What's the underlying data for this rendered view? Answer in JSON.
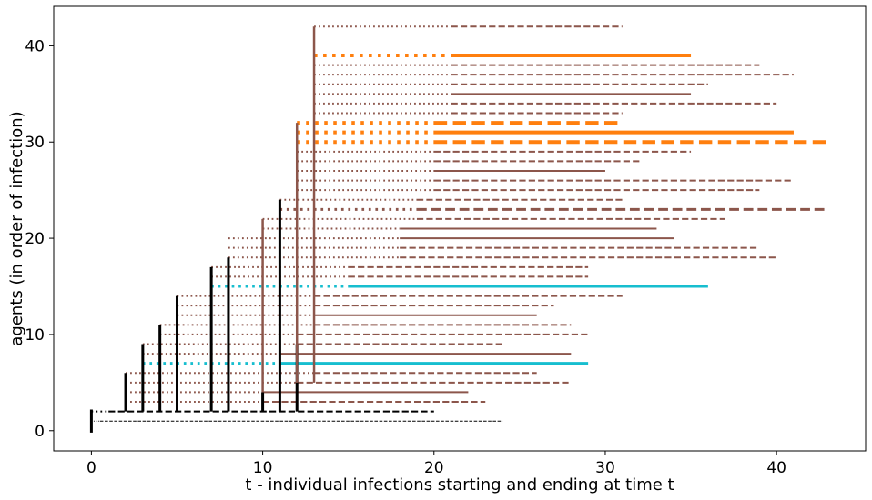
{
  "chart_data": {
    "type": "line",
    "title": "",
    "xlabel": "t - individual infections starting and ending at time t",
    "ylabel": "agents (in order of infection)",
    "xlim": [
      -2.2,
      45.2
    ],
    "ylim": [
      -2.1,
      44.1
    ],
    "xticks": [
      0,
      10,
      20,
      30,
      40
    ],
    "yticks": [
      0,
      10,
      20,
      30,
      40
    ],
    "grid": false,
    "legend": "none",
    "colors": {
      "brown": "#8c564b",
      "orange": "#ff7f0e",
      "cyan": "#17becf",
      "black": "#000000"
    },
    "infection_links": [
      {
        "t": 0,
        "y_from": -0.2,
        "y_to": 2.2,
        "color": "black"
      },
      {
        "t": 2,
        "y_from": 2,
        "y_to": 6,
        "color": "black"
      },
      {
        "t": 3,
        "y_from": 2,
        "y_to": 9,
        "color": "black"
      },
      {
        "t": 4,
        "y_from": 2,
        "y_to": 11,
        "color": "black"
      },
      {
        "t": 5,
        "y_from": 2,
        "y_to": 14,
        "color": "black"
      },
      {
        "t": 7,
        "y_from": 2,
        "y_to": 17,
        "color": "black"
      },
      {
        "t": 8,
        "y_from": 2,
        "y_to": 18,
        "color": "black"
      },
      {
        "t": 10,
        "y_from": 2,
        "y_to": 4,
        "color": "black"
      },
      {
        "t": 11,
        "y_from": 2,
        "y_to": 24,
        "color": "black"
      },
      {
        "t": 12,
        "y_from": 2,
        "y_to": 9,
        "color": "black"
      },
      {
        "t": 10,
        "y_from": 4,
        "y_to": 22,
        "color": "brown"
      },
      {
        "t": 12,
        "y_from": 5,
        "y_to": 32,
        "color": "brown"
      },
      {
        "t": 13,
        "y_from": 5,
        "y_to": 42,
        "color": "brown"
      }
    ],
    "agents": [
      {
        "agent": 1,
        "dotted": [
          0,
          0.5
        ],
        "dashed": [
          0.5,
          24
        ],
        "solid": null,
        "color": "black",
        "width": 1
      },
      {
        "agent": 2,
        "dotted": [
          0,
          1
        ],
        "dashed": [
          1,
          20
        ],
        "solid": null,
        "color": "black",
        "width": 2
      },
      {
        "agent": 3,
        "dotted": [
          2,
          10
        ],
        "dashed": [
          10,
          23
        ],
        "solid": null,
        "color": "brown",
        "width": 2
      },
      {
        "agent": 4,
        "dotted": [
          2,
          10
        ],
        "dashed": null,
        "solid": [
          10,
          22
        ],
        "color": "brown",
        "width": 2
      },
      {
        "agent": 5,
        "dotted": [
          2,
          12
        ],
        "dashed": [
          12,
          28
        ],
        "solid": null,
        "color": "brown",
        "width": 2
      },
      {
        "agent": 6,
        "dotted": [
          2,
          13
        ],
        "dashed": [
          13,
          26
        ],
        "solid": null,
        "color": "brown",
        "width": 2
      },
      {
        "agent": 7,
        "dotted": [
          3,
          11
        ],
        "dashed": null,
        "solid": [
          11,
          29
        ],
        "color": "cyan",
        "width": 3
      },
      {
        "agent": 8,
        "dotted": [
          3,
          11
        ],
        "dashed": null,
        "solid": [
          11,
          28
        ],
        "color": "brown",
        "width": 2
      },
      {
        "agent": 9,
        "dotted": [
          3,
          12
        ],
        "dashed": [
          12,
          24
        ],
        "solid": null,
        "color": "brown",
        "width": 2
      },
      {
        "agent": 10,
        "dotted": [
          4,
          12
        ],
        "dashed": [
          12,
          29
        ],
        "solid": null,
        "color": "brown",
        "width": 2
      },
      {
        "agent": 11,
        "dotted": [
          4,
          13
        ],
        "dashed": [
          13,
          28
        ],
        "solid": null,
        "color": "brown",
        "width": 2
      },
      {
        "agent": 12,
        "dotted": [
          5,
          13
        ],
        "dashed": null,
        "solid": [
          13,
          26
        ],
        "color": "brown",
        "width": 2
      },
      {
        "agent": 13,
        "dotted": [
          5,
          13
        ],
        "dashed": [
          13,
          27
        ],
        "solid": null,
        "color": "brown",
        "width": 2
      },
      {
        "agent": 14,
        "dotted": [
          5,
          13
        ],
        "dashed": [
          13,
          31
        ],
        "solid": null,
        "color": "brown",
        "width": 2
      },
      {
        "agent": 15,
        "dotted": [
          7,
          15
        ],
        "dashed": null,
        "solid": [
          15,
          36
        ],
        "color": "cyan",
        "width": 3
      },
      {
        "agent": 16,
        "dotted": [
          7,
          15
        ],
        "dashed": [
          15,
          29
        ],
        "solid": null,
        "color": "brown",
        "width": 2
      },
      {
        "agent": 17,
        "dotted": [
          7,
          15
        ],
        "dashed": [
          15,
          29
        ],
        "solid": null,
        "color": "brown",
        "width": 2
      },
      {
        "agent": 18,
        "dotted": [
          8,
          18
        ],
        "dashed": [
          18,
          40
        ],
        "solid": null,
        "color": "brown",
        "width": 2
      },
      {
        "agent": 19,
        "dotted": [
          8,
          18
        ],
        "dashed": [
          18,
          39
        ],
        "solid": null,
        "color": "brown",
        "width": 2
      },
      {
        "agent": 20,
        "dotted": [
          8,
          18
        ],
        "dashed": null,
        "solid": [
          18,
          34
        ],
        "color": "brown",
        "width": 2
      },
      {
        "agent": 21,
        "dotted": [
          10,
          18
        ],
        "dashed": null,
        "solid": [
          18,
          33
        ],
        "color": "brown",
        "width": 2
      },
      {
        "agent": 22,
        "dotted": [
          10,
          19
        ],
        "dashed": [
          19,
          37
        ],
        "solid": null,
        "color": "brown",
        "width": 2
      },
      {
        "agent": 23,
        "dotted": [
          11,
          19
        ],
        "dashed": [
          19,
          43
        ],
        "solid": null,
        "color": "brown",
        "width": 3
      },
      {
        "agent": 24,
        "dotted": [
          11,
          19
        ],
        "dashed": [
          19,
          31
        ],
        "solid": null,
        "color": "brown",
        "width": 2
      },
      {
        "agent": 25,
        "dotted": [
          12,
          20
        ],
        "dashed": [
          20,
          39
        ],
        "solid": null,
        "color": "brown",
        "width": 2
      },
      {
        "agent": 26,
        "dotted": [
          12,
          20
        ],
        "dashed": [
          20,
          41
        ],
        "solid": null,
        "color": "brown",
        "width": 2
      },
      {
        "agent": 27,
        "dotted": [
          12,
          20
        ],
        "dashed": null,
        "solid": [
          20,
          30
        ],
        "color": "brown",
        "width": 2
      },
      {
        "agent": 28,
        "dotted": [
          12,
          20
        ],
        "dashed": [
          20,
          32
        ],
        "solid": null,
        "color": "brown",
        "width": 2
      },
      {
        "agent": 29,
        "dotted": [
          12,
          20
        ],
        "dashed": [
          20,
          35
        ],
        "solid": null,
        "color": "brown",
        "width": 2
      },
      {
        "agent": 30,
        "dotted": [
          12,
          20
        ],
        "dashed": [
          20,
          43
        ],
        "solid": null,
        "color": "orange",
        "width": 4
      },
      {
        "agent": 31,
        "dotted": [
          12,
          20
        ],
        "dashed": null,
        "solid": [
          20,
          41
        ],
        "color": "orange",
        "width": 4
      },
      {
        "agent": 32,
        "dotted": [
          12,
          20
        ],
        "dashed": [
          20,
          31
        ],
        "solid": null,
        "color": "orange",
        "width": 4
      },
      {
        "agent": 33,
        "dotted": [
          13,
          21
        ],
        "dashed": [
          21,
          31
        ],
        "solid": null,
        "color": "brown",
        "width": 2
      },
      {
        "agent": 34,
        "dotted": [
          13,
          21
        ],
        "dashed": [
          21,
          40
        ],
        "solid": null,
        "color": "brown",
        "width": 2
      },
      {
        "agent": 35,
        "dotted": [
          13,
          21
        ],
        "dashed": null,
        "solid": [
          21,
          35
        ],
        "color": "brown",
        "width": 2
      },
      {
        "agent": 36,
        "dotted": [
          13,
          21
        ],
        "dashed": [
          21,
          36
        ],
        "solid": null,
        "color": "brown",
        "width": 2
      },
      {
        "agent": 37,
        "dotted": [
          13,
          21
        ],
        "dashed": [
          21,
          41
        ],
        "solid": null,
        "color": "brown",
        "width": 2
      },
      {
        "agent": 38,
        "dotted": [
          13,
          21
        ],
        "dashed": [
          21,
          39
        ],
        "solid": null,
        "color": "brown",
        "width": 2
      },
      {
        "agent": 39,
        "dotted": [
          13,
          21
        ],
        "dashed": null,
        "solid": [
          21,
          35
        ],
        "color": "orange",
        "width": 4
      },
      {
        "agent": 42,
        "dotted": [
          13,
          21
        ],
        "dashed": [
          21,
          31
        ],
        "solid": null,
        "color": "brown",
        "width": 2
      }
    ]
  }
}
